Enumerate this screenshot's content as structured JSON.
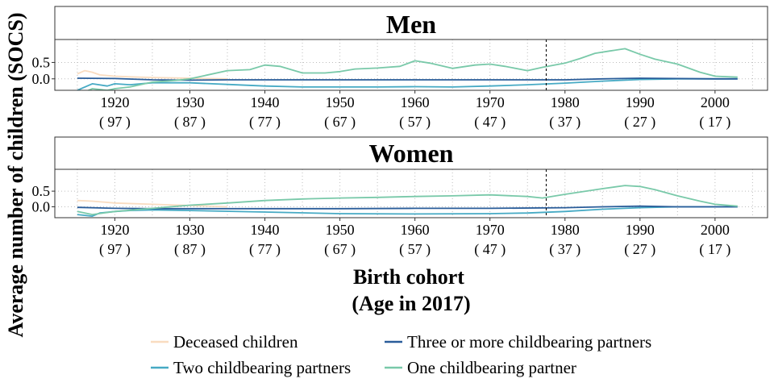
{
  "chart_data": {
    "type": "line",
    "ylabel": "Average number of children (SOCS)",
    "xlabel_line1": "Birth cohort",
    "xlabel_line2": "(Age in 2017)",
    "xlim": [
      1912,
      2007
    ],
    "ylim": [
      -0.35,
      1.2
    ],
    "x_ticks": [
      1920,
      1930,
      1940,
      1950,
      1960,
      1970,
      1980,
      1990,
      2000
    ],
    "x_tick_ages": [
      "( 97 )",
      "( 87 )",
      "( 77 )",
      "( 67 )",
      "( 57 )",
      "( 47 )",
      "( 37 )",
      "( 27 )",
      "( 17 )"
    ],
    "y_ticks": [
      0.0,
      0.5
    ],
    "y_tick_labels": [
      "0.0",
      "0.5"
    ],
    "grid": true,
    "legend_position": "bottom",
    "colors": {
      "deceased": "#f9dcc0",
      "two": "#46aac4",
      "three": "#2a5d9a",
      "one": "#79c9a9"
    },
    "legend": [
      {
        "key": "deceased",
        "label": "Deceased children"
      },
      {
        "key": "three",
        "label": "Three or more childbearing partners"
      },
      {
        "key": "two",
        "label": "Two childbearing partners"
      },
      {
        "key": "one",
        "label": "One childbearing partner"
      }
    ],
    "panels": [
      {
        "title": "Men",
        "vline_x": 1977.5,
        "series": [
          {
            "key": "deceased",
            "name": "Deceased children",
            "x": [
              1915,
              1916,
              1917,
              1918,
              1920,
              1922,
              1925,
              1928,
              1930,
              1932,
              1935
            ],
            "y": [
              0.15,
              0.25,
              0.2,
              0.12,
              0.08,
              0.06,
              0.04,
              0.03,
              0.02,
              0.01,
              0.0
            ]
          },
          {
            "key": "two",
            "name": "Two childbearing partners",
            "x": [
              1915,
              1917,
              1919,
              1920,
              1922,
              1925,
              1930,
              1935,
              1940,
              1945,
              1950,
              1955,
              1960,
              1965,
              1970,
              1975,
              1980,
              1985,
              1990,
              1995,
              2000,
              2003
            ],
            "y": [
              -0.35,
              -0.15,
              -0.22,
              -0.15,
              -0.18,
              -0.12,
              -0.12,
              -0.17,
              -0.22,
              -0.25,
              -0.25,
              -0.25,
              -0.24,
              -0.25,
              -0.22,
              -0.18,
              -0.13,
              -0.07,
              -0.02,
              0.0,
              0.0,
              0.0
            ]
          },
          {
            "key": "three",
            "name": "Three or more childbearing partners",
            "x": [
              1915,
              1920,
              1925,
              1930,
              1935,
              1940,
              1950,
              1960,
              1970,
              1975,
              1980,
              1985,
              1990,
              2000,
              2003
            ],
            "y": [
              0.02,
              0.01,
              -0.03,
              -0.04,
              -0.03,
              -0.03,
              -0.03,
              -0.03,
              -0.03,
              -0.03,
              -0.03,
              0.0,
              0.02,
              0.0,
              0.0
            ]
          },
          {
            "key": "one",
            "name": "One childbearing partner",
            "x": [
              1915,
              1917,
              1919,
              1920,
              1922,
              1925,
              1928,
              1930,
              1932,
              1935,
              1938,
              1940,
              1942,
              1945,
              1948,
              1950,
              1952,
              1955,
              1958,
              1960,
              1962,
              1965,
              1968,
              1970,
              1972,
              1975,
              1977,
              1980,
              1982,
              1984,
              1986,
              1988,
              1990,
              1992,
              1995,
              1998,
              2000,
              2003
            ],
            "y": [
              -0.5,
              -0.3,
              -0.35,
              -0.3,
              -0.25,
              -0.1,
              -0.05,
              0.0,
              0.1,
              0.25,
              0.28,
              0.42,
              0.38,
              0.18,
              0.18,
              0.22,
              0.3,
              0.33,
              0.38,
              0.55,
              0.48,
              0.32,
              0.42,
              0.45,
              0.38,
              0.25,
              0.35,
              0.48,
              0.62,
              0.78,
              0.85,
              0.92,
              0.75,
              0.6,
              0.45,
              0.2,
              0.08,
              0.05
            ]
          }
        ]
      },
      {
        "title": "Women",
        "vline_x": 1977.5,
        "series": [
          {
            "key": "deceased",
            "name": "Deceased children",
            "x": [
              1915,
              1917,
              1920,
              1925,
              1930,
              1935
            ],
            "y": [
              0.2,
              0.18,
              0.12,
              0.08,
              0.04,
              0.0
            ]
          },
          {
            "key": "two",
            "name": "Two childbearing partners",
            "x": [
              1915,
              1917,
              1918,
              1920,
              1922,
              1925,
              1930,
              1940,
              1950,
              1960,
              1970,
              1975,
              1980,
              1985,
              1990,
              1995,
              2000,
              2003
            ],
            "y": [
              -0.25,
              -0.3,
              -0.2,
              -0.15,
              -0.12,
              -0.1,
              -0.12,
              -0.17,
              -0.22,
              -0.23,
              -0.22,
              -0.2,
              -0.15,
              -0.08,
              -0.03,
              0.0,
              0.0,
              0.0
            ]
          },
          {
            "key": "three",
            "name": "Three or more childbearing partners",
            "x": [
              1915,
              1920,
              1925,
              1930,
              1940,
              1950,
              1960,
              1970,
              1980,
              1985,
              1990,
              1995,
              2000,
              2003
            ],
            "y": [
              -0.02,
              -0.05,
              -0.06,
              -0.06,
              -0.06,
              -0.06,
              -0.05,
              -0.05,
              -0.03,
              0.0,
              0.02,
              0.0,
              0.0,
              0.0
            ]
          },
          {
            "key": "one",
            "name": "One childbearing partner",
            "x": [
              1915,
              1917,
              1920,
              1925,
              1930,
              1935,
              1940,
              1945,
              1950,
              1955,
              1960,
              1965,
              1970,
              1975,
              1977,
              1980,
              1985,
              1988,
              1990,
              1992,
              1995,
              1998,
              2000,
              2003
            ],
            "y": [
              -0.15,
              -0.25,
              -0.15,
              -0.05,
              0.05,
              0.12,
              0.2,
              0.25,
              0.28,
              0.3,
              0.33,
              0.35,
              0.38,
              0.33,
              0.28,
              0.4,
              0.58,
              0.68,
              0.65,
              0.55,
              0.35,
              0.18,
              0.08,
              0.02
            ]
          }
        ]
      }
    ]
  }
}
